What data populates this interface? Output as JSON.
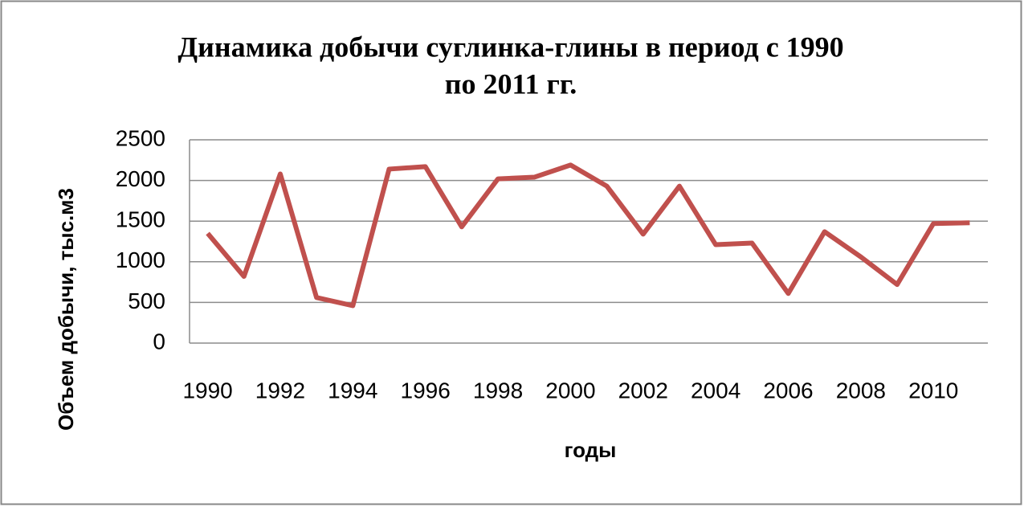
{
  "chart_data": {
    "type": "line",
    "title": [
      "Динамика добычи суглинка-глины в период с 1990",
      "по 2011 гг."
    ],
    "x_label": "годы",
    "y_label": "Объем добычи, тыс.м3",
    "categories": [
      "1990",
      null,
      "1992",
      null,
      "1994",
      null,
      "1996",
      null,
      "1998",
      null,
      "2000",
      null,
      "2002",
      null,
      "2004",
      null,
      "2006",
      null,
      "2008",
      null,
      "2010",
      null
    ],
    "series": [
      {
        "name": "Объем добычи",
        "color": "#c0504d",
        "values": [
          1350,
          820,
          2080,
          560,
          460,
          2140,
          2170,
          1430,
          2020,
          2040,
          2190,
          1930,
          1340,
          1930,
          1210,
          1230,
          610,
          1370,
          1060,
          720,
          1470,
          1480
        ]
      }
    ],
    "ylim": [
      0,
      2500
    ],
    "yticks": [
      0,
      500,
      1000,
      1500,
      2000,
      2500
    ],
    "grid": true
  }
}
